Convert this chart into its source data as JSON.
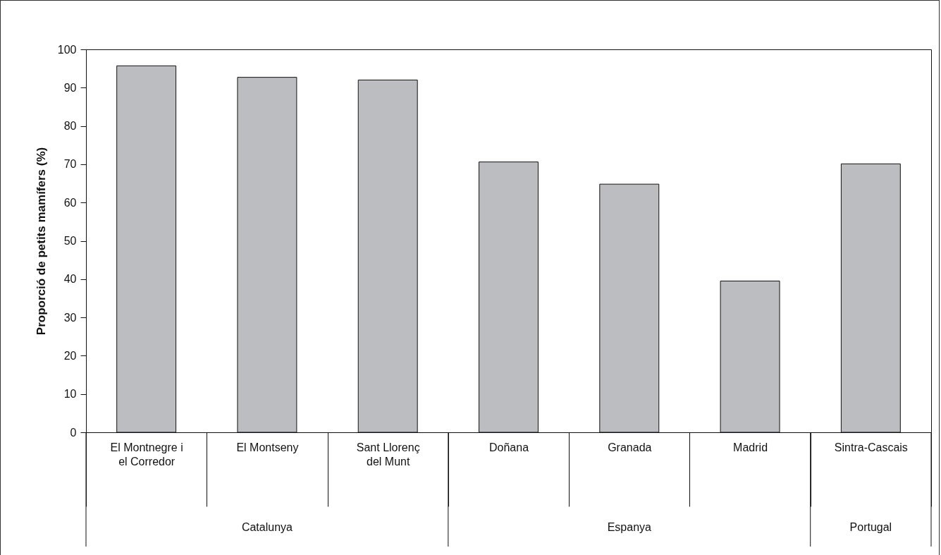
{
  "chart_data": {
    "type": "bar",
    "ylabel": "Proporció de petits mamífers (%)",
    "categories": [
      "El Montnegre i el Corredor",
      "El Montseny",
      "Sant Llorenç del Munt",
      "Doñana",
      "Granada",
      "Madrid",
      "Sintra-Cascais"
    ],
    "values": [
      95.7,
      92.7,
      92.0,
      70.6,
      64.8,
      39.5,
      70.1
    ],
    "color": "#bcbdc1",
    "ylim": [
      0,
      100
    ],
    "yticks": [
      0,
      10,
      20,
      30,
      40,
      50,
      60,
      70,
      80,
      90,
      100
    ],
    "annotations": [
      "Catalunya",
      "Espanya",
      "Portugal"
    ]
  }
}
